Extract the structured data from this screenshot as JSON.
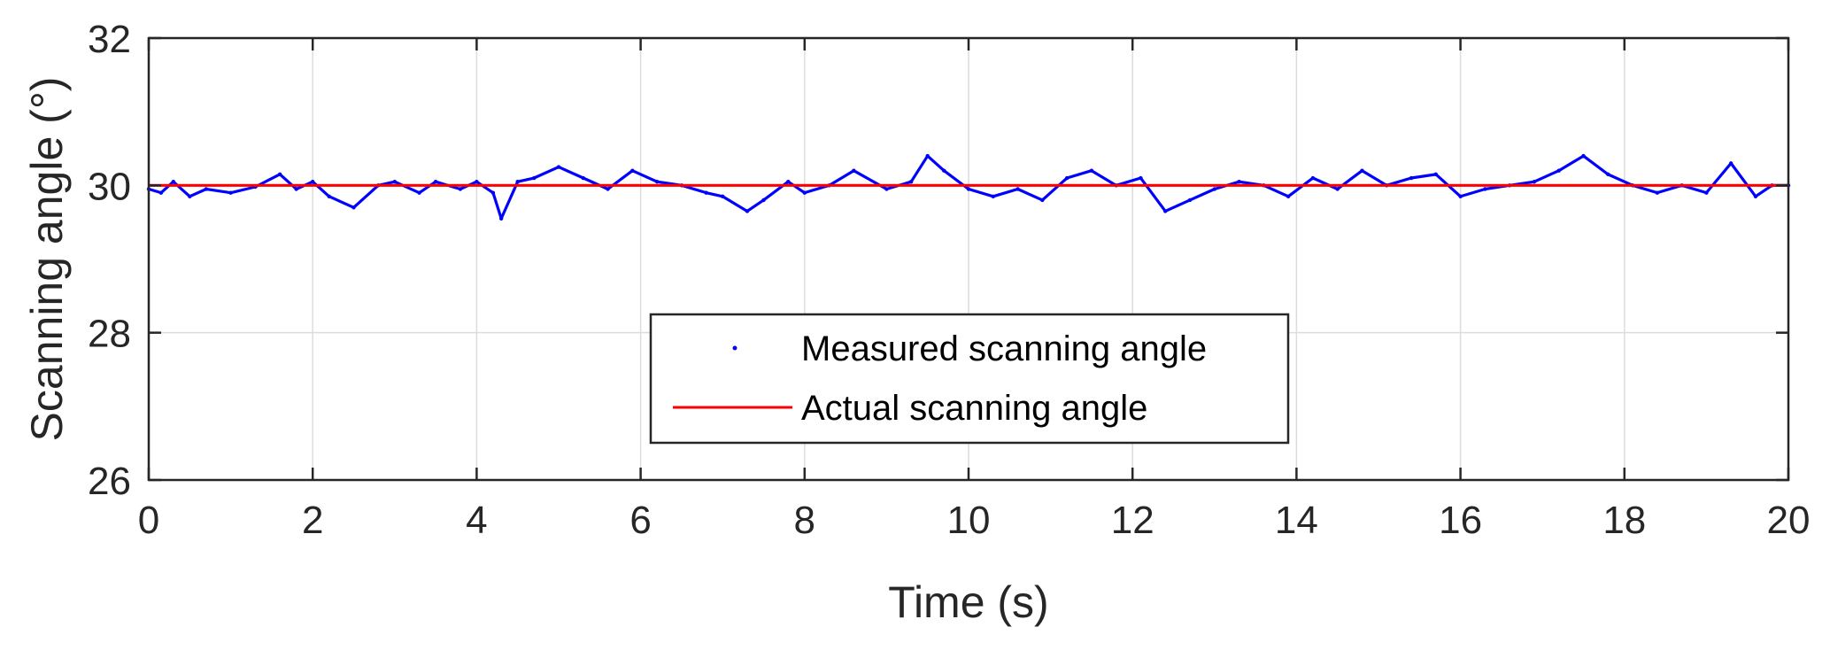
{
  "chart_data": {
    "type": "line",
    "title": "",
    "xlabel": "Time (s)",
    "ylabel": "Scanning angle (°)",
    "xlim": [
      0,
      20
    ],
    "ylim": [
      26,
      32
    ],
    "xticks": [
      "0",
      "2",
      "4",
      "6",
      "8",
      "10",
      "12",
      "14",
      "16",
      "18",
      "20"
    ],
    "yticks": [
      "26",
      "28",
      "30",
      "32"
    ],
    "grid": true,
    "legend_position": "lower-center",
    "series": [
      {
        "name": "Measured scanning angle",
        "style": "dots",
        "color": "#0000ff",
        "x": [
          0,
          0.15,
          0.3,
          0.5,
          0.7,
          1.0,
          1.3,
          1.6,
          1.8,
          2.0,
          2.2,
          2.5,
          2.8,
          3.0,
          3.3,
          3.5,
          3.8,
          4.0,
          4.2,
          4.3,
          4.5,
          4.7,
          5.0,
          5.3,
          5.6,
          5.9,
          6.2,
          6.5,
          6.8,
          7.0,
          7.3,
          7.5,
          7.8,
          8.0,
          8.3,
          8.6,
          9.0,
          9.3,
          9.5,
          9.7,
          10.0,
          10.3,
          10.6,
          10.9,
          11.2,
          11.5,
          11.8,
          12.1,
          12.4,
          12.7,
          13.0,
          13.3,
          13.6,
          13.9,
          14.2,
          14.5,
          14.8,
          15.1,
          15.4,
          15.7,
          16.0,
          16.3,
          16.6,
          16.9,
          17.2,
          17.5,
          17.8,
          18.1,
          18.4,
          18.7,
          19.0,
          19.3,
          19.6,
          19.8,
          20.0
        ],
        "y": [
          29.95,
          29.9,
          30.05,
          29.85,
          29.95,
          29.9,
          29.98,
          30.15,
          29.95,
          30.05,
          29.85,
          29.7,
          30.0,
          30.05,
          29.9,
          30.05,
          29.95,
          30.05,
          29.9,
          29.55,
          30.05,
          30.1,
          30.25,
          30.1,
          29.95,
          30.2,
          30.05,
          30.0,
          29.9,
          29.85,
          29.65,
          29.8,
          30.05,
          29.9,
          30.0,
          30.2,
          29.95,
          30.05,
          30.4,
          30.2,
          29.95,
          29.85,
          29.95,
          29.8,
          30.1,
          30.2,
          30.0,
          30.1,
          29.65,
          29.8,
          29.95,
          30.05,
          30.0,
          29.85,
          30.1,
          29.95,
          30.2,
          30.0,
          30.1,
          30.15,
          29.85,
          29.95,
          30.0,
          30.05,
          30.2,
          30.4,
          30.15,
          30.0,
          29.9,
          30.0,
          29.9,
          30.3,
          29.85,
          30.0,
          30.0
        ]
      },
      {
        "name": "Actual scanning angle",
        "style": "line",
        "color": "#ff0000",
        "x": [
          0,
          20
        ],
        "y": [
          30,
          30
        ]
      }
    ]
  }
}
